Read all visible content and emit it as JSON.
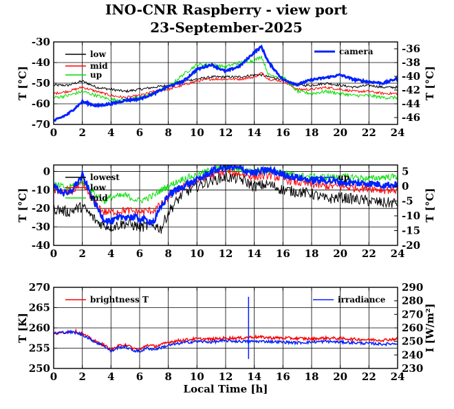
{
  "figure": {
    "title": "INO-CNR Raspberry - view port",
    "subtitle": "23-September-2025",
    "xlabel": "Local Time [h]"
  },
  "colors": {
    "black": "#000000",
    "red": "#ff0000",
    "green": "#00dd00",
    "blue": "#0022ff"
  },
  "chart_data": [
    {
      "type": "line",
      "title": "",
      "xlabel": "",
      "ylabel": "T [°C]",
      "y2label": "T [°C]",
      "xlim": [
        0,
        24
      ],
      "ylim": [
        -70,
        -30
      ],
      "y2lim": [
        -47,
        -35
      ],
      "xticks": [
        0,
        2,
        4,
        6,
        8,
        10,
        12,
        14,
        16,
        18,
        20,
        22,
        24
      ],
      "yticks": [
        -70,
        -60,
        -50,
        -40,
        -30
      ],
      "y2ticks": [
        -46,
        -44,
        -42,
        -40,
        -38,
        -36
      ],
      "grid": true,
      "legend": "top-left (low, mid, up); top-right (camera)",
      "x": [
        0,
        1,
        2,
        3,
        4,
        5,
        6,
        7,
        8,
        9,
        10,
        11,
        12,
        13,
        14,
        14.5,
        15,
        16,
        17,
        18,
        19,
        20,
        21,
        22,
        23,
        24
      ],
      "series": [
        {
          "name": "low",
          "color": "#000000",
          "axis": "left",
          "values": [
            -51,
            -51,
            -49,
            -52,
            -53,
            -54,
            -53,
            -52,
            -51,
            -49,
            -48,
            -47,
            -47,
            -47,
            -46,
            -46,
            -47,
            -48,
            -51,
            -51,
            -50,
            -51,
            -52,
            -51,
            -52,
            -52
          ]
        },
        {
          "name": "mid",
          "color": "#ff0000",
          "axis": "left",
          "values": [
            -55,
            -54,
            -52,
            -54,
            -56,
            -57,
            -56,
            -54,
            -53,
            -51,
            -49,
            -48,
            -48,
            -48,
            -47,
            -45,
            -48,
            -49,
            -53,
            -53,
            -52,
            -53,
            -54,
            -54,
            -55,
            -55
          ]
        },
        {
          "name": "up",
          "color": "#00dd00",
          "axis": "left",
          "values": [
            -57,
            -56,
            -54,
            -56,
            -58,
            -58,
            -57,
            -55,
            -52,
            -46,
            -41,
            -41,
            -42,
            -40,
            -39,
            -37,
            -46,
            -47,
            -54,
            -55,
            -54,
            -55,
            -56,
            -56,
            -57,
            -57
          ]
        },
        {
          "name": "camera",
          "color": "#0022ff",
          "axis": "right",
          "values": [
            -46.5,
            -45.5,
            -43.7,
            -44.3,
            -44.0,
            -43.5,
            -43.3,
            -42.5,
            -41.5,
            -40.8,
            -39.0,
            -38.3,
            -39.3,
            -38.5,
            -36.5,
            -35.7,
            -38.0,
            -40.5,
            -41.2,
            -40.5,
            -40.2,
            -39.8,
            -40.5,
            -40.8,
            -41.0,
            -40.3
          ]
        }
      ]
    },
    {
      "type": "line",
      "title": "",
      "xlabel": "",
      "ylabel": "T [°C]",
      "y2label": "T [°C]",
      "xlim": [
        0,
        24
      ],
      "ylim": [
        -40,
        3.5
      ],
      "y2lim": [
        -20,
        7.2
      ],
      "xticks": [
        0,
        2,
        4,
        6,
        8,
        10,
        12,
        14,
        16,
        18,
        20,
        22,
        24
      ],
      "yticks": [
        -40,
        -30,
        -20,
        -10,
        0
      ],
      "y2ticks": [
        -20,
        -15,
        -10,
        -5,
        0,
        5
      ],
      "grid": true,
      "legend": "top-left (lowest, low, mid); top-right (up)",
      "x": [
        0,
        1,
        2,
        3,
        3.5,
        4,
        5,
        6,
        7,
        7.5,
        8,
        9,
        10,
        11,
        12,
        13,
        14,
        15,
        16,
        17,
        18,
        19,
        20,
        21,
        22,
        23,
        24
      ],
      "series": [
        {
          "name": "lowest",
          "color": "#000000",
          "axis": "left",
          "values": [
            -20,
            -22,
            -19,
            -27,
            -29,
            -30,
            -28,
            -30,
            -29,
            -31,
            -22,
            -12,
            -8,
            -5,
            -3,
            -4,
            -8,
            -7,
            -10,
            -11,
            -12,
            -15,
            -14,
            -15,
            -16,
            -17,
            -17
          ]
        },
        {
          "name": "low",
          "color": "#ff0000",
          "axis": "left",
          "values": [
            -10,
            -12,
            -7,
            -18,
            -22,
            -22,
            -21,
            -22,
            -21,
            -18,
            -14,
            -8,
            -5,
            -2,
            0,
            -1,
            -3,
            -2,
            -4,
            -6,
            -7,
            -8,
            -8,
            -9,
            -9,
            -10,
            -10
          ]
        },
        {
          "name": "mid",
          "color": "#00dd00",
          "axis": "left",
          "values": [
            -7,
            -9,
            -5,
            -13,
            -16,
            -14,
            -13,
            -16,
            -13,
            -10,
            -8,
            -4,
            -2,
            1,
            2,
            1,
            0,
            1,
            -1,
            -2,
            -3,
            -3,
            -3,
            -3,
            -4,
            -3,
            -3
          ]
        },
        {
          "name": "up",
          "color": "#0022ff",
          "axis": "right",
          "values": [
            0,
            -3,
            3.5,
            -7,
            -11,
            -12,
            -10,
            -11,
            -12,
            -7,
            -3,
            0,
            2,
            5,
            6.5,
            6,
            4.5,
            5.5,
            4,
            3,
            2,
            2,
            1.5,
            1,
            1,
            0.5,
            0.5
          ]
        }
      ]
    },
    {
      "type": "line",
      "title": "",
      "xlabel": "Local Time [h]",
      "ylabel": "T [K]",
      "y2label": "I [W/m²]",
      "xlim": [
        0,
        24
      ],
      "ylim": [
        250,
        270
      ],
      "y2lim": [
        230,
        290
      ],
      "xticks": [
        0,
        2,
        4,
        6,
        8,
        10,
        12,
        14,
        16,
        18,
        20,
        22,
        24
      ],
      "yticks": [
        250,
        255,
        260,
        265,
        270
      ],
      "y2ticks": [
        230,
        240,
        250,
        260,
        270,
        280,
        290
      ],
      "grid": true,
      "legend": "top-left (brightness T); top-right (irradiance)",
      "x": [
        0,
        0.5,
        1,
        1.5,
        2,
        2.5,
        3,
        3.5,
        4,
        4.5,
        5,
        5.5,
        6,
        6.5,
        7,
        7.5,
        8,
        9,
        10,
        11,
        12,
        13,
        14,
        15,
        16,
        17,
        18,
        19,
        20,
        21,
        22,
        23,
        24
      ],
      "series": [
        {
          "name": "brightness T",
          "color": "#ff0000",
          "axis": "left",
          "values": [
            258.5,
            258.8,
            259.0,
            259.2,
            258.5,
            257.5,
            256.5,
            255.8,
            254.5,
            255.5,
            256.0,
            255.0,
            254.5,
            255.8,
            255.5,
            255.8,
            256.5,
            257.0,
            257.3,
            257.2,
            257.5,
            257.5,
            257.8,
            257.6,
            257.5,
            257.4,
            257.3,
            257.5,
            257.4,
            257.2,
            257.1,
            257.0,
            257.3
          ]
        },
        {
          "name": "irradiance",
          "color": "#0022ff",
          "axis": "right",
          "values": [
            256.0,
            256.5,
            257.0,
            256.5,
            255.0,
            252.0,
            249.0,
            247.0,
            242.5,
            245.5,
            246.0,
            243.5,
            242.5,
            245.0,
            244.0,
            245.5,
            247.0,
            249.0,
            250.0,
            249.5,
            250.5,
            250.0,
            250.0,
            250.0,
            249.5,
            249.0,
            249.5,
            250.0,
            249.5,
            249.0,
            248.5,
            248.0,
            248.5
          ]
        }
      ],
      "spikes": [
        {
          "series": "irradiance",
          "x": 13.6,
          "min": 237,
          "max": 283
        }
      ]
    }
  ]
}
